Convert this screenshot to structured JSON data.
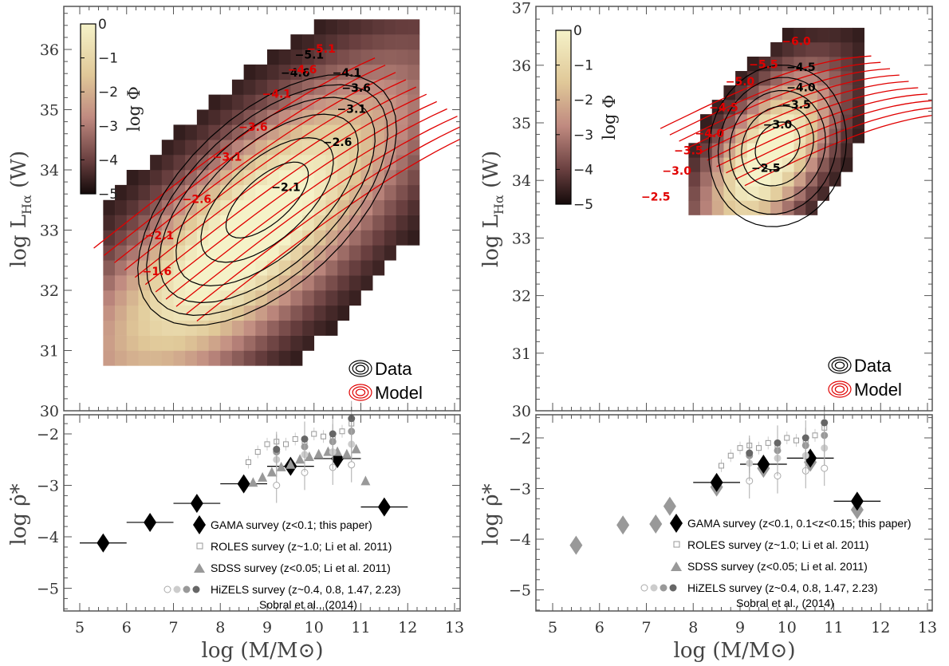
{
  "chart_data": [
    {
      "type": "heatmap",
      "panel": "top-left",
      "ylabel": "log L",
      "ylabel_sub": "Hα",
      "ylabel_unit": "(W)",
      "xlim": [
        4.5,
        13
      ],
      "ylim": [
        30,
        36.5
      ],
      "yticks": [
        "30",
        "31",
        "32",
        "33",
        "34",
        "35",
        "36"
      ],
      "colorbar": {
        "label": "log Φ",
        "ticks": [
          "0",
          "−1",
          "−2",
          "−3",
          "−4",
          "−5"
        ],
        "range": [
          -5,
          0
        ]
      },
      "legend": {
        "data": "Data",
        "model": "Model",
        "position": "bottom-right"
      },
      "data_contour_labels": [
        {
          "text": "−5.1",
          "x": 9.9,
          "y": 35.85
        },
        {
          "text": "−4.6",
          "x": 9.6,
          "y": 35.55
        },
        {
          "text": "−4.1",
          "x": 10.7,
          "y": 35.55
        },
        {
          "text": "−3.6",
          "x": 10.9,
          "y": 35.3
        },
        {
          "text": "−3.1",
          "x": 10.8,
          "y": 34.95
        },
        {
          "text": "−2.6",
          "x": 10.5,
          "y": 34.4
        },
        {
          "text": "−2.1",
          "x": 9.4,
          "y": 33.65
        }
      ],
      "model_contour_labels": [
        {
          "text": "−5.1",
          "x": 10.15,
          "y": 35.95
        },
        {
          "text": "−4.6",
          "x": 9.75,
          "y": 35.6
        },
        {
          "text": "−4.1",
          "x": 9.2,
          "y": 35.2
        },
        {
          "text": "−3.6",
          "x": 8.7,
          "y": 34.65
        },
        {
          "text": "−3.1",
          "x": 8.15,
          "y": 34.15
        },
        {
          "text": "−2.6",
          "x": 7.5,
          "y": 33.45
        },
        {
          "text": "−2.1",
          "x": 6.7,
          "y": 32.85
        },
        {
          "text": "−1.6",
          "x": 6.65,
          "y": 32.25
        }
      ]
    },
    {
      "type": "heatmap",
      "panel": "top-right",
      "ylabel": "log L",
      "ylabel_sub": "Hα",
      "ylabel_unit": "(W)",
      "xlim": [
        4.5,
        13
      ],
      "ylim": [
        30,
        37
      ],
      "yticks": [
        "30",
        "31",
        "32",
        "33",
        "34",
        "35",
        "36",
        "37"
      ],
      "colorbar": {
        "label": "log Φ",
        "ticks": [
          "0",
          "−1",
          "−2",
          "−3",
          "−4",
          "−5"
        ],
        "range": [
          -5,
          0
        ]
      },
      "legend": {
        "data": "Data",
        "model": "Model",
        "position": "bottom-right"
      },
      "data_contour_labels": [
        {
          "text": "−4.5",
          "x": 10.3,
          "y": 35.9
        },
        {
          "text": "−4.0",
          "x": 10.3,
          "y": 35.55
        },
        {
          "text": "−3.5",
          "x": 10.2,
          "y": 35.25
        },
        {
          "text": "−3.0",
          "x": 9.8,
          "y": 34.9
        },
        {
          "text": "−2.5",
          "x": 9.55,
          "y": 34.15
        }
      ],
      "model_contour_labels": [
        {
          "text": "−6.0",
          "x": 10.2,
          "y": 36.35
        },
        {
          "text": "−5.5",
          "x": 9.5,
          "y": 35.95
        },
        {
          "text": "−5.0",
          "x": 9.0,
          "y": 35.65
        },
        {
          "text": "−4.5",
          "x": 8.65,
          "y": 35.2
        },
        {
          "text": "−4.0",
          "x": 8.35,
          "y": 34.75
        },
        {
          "text": "−3.5",
          "x": 7.9,
          "y": 34.45
        },
        {
          "text": "−3.0",
          "x": 7.65,
          "y": 34.1
        },
        {
          "text": "−2.5",
          "x": 7.2,
          "y": 33.65
        }
      ]
    },
    {
      "type": "scatter",
      "panel": "bottom-left",
      "ylabel": "log ρ̇*",
      "xlabel": "log (M/M⊙)",
      "xlim": [
        4.5,
        13
      ],
      "ylim": [
        -5.6,
        -1.6
      ],
      "xticks": [
        "5",
        "6",
        "7",
        "8",
        "9",
        "10",
        "11",
        "12",
        "13"
      ],
      "yticks": [
        "−2",
        "−3",
        "−4",
        "−5"
      ],
      "legend": {
        "gama": "GAMA survey (z<0.1; this paper)",
        "roles": "ROLES survey (z~1.0; Li et al. 2011)",
        "sdss": "SDSS survey (z<0.05; Li et al. 2011)",
        "hizels": "HiZELS survey (z~0.4, 0.8, 1.47, 2.23)",
        "hizels_ref": "Sobral et al., (2014)"
      },
      "series": [
        {
          "name": "GAMA",
          "x": [
            5.5,
            6.5,
            7.5,
            8.5,
            9.5,
            10.5,
            11.5
          ],
          "y": [
            -4.12,
            -3.72,
            -3.35,
            -2.97,
            -2.63,
            -2.48,
            -3.42
          ],
          "xerr": 0.5
        },
        {
          "name": "ROLES",
          "x": [
            8.6,
            8.8,
            9.0,
            9.2,
            9.4,
            9.6,
            9.8,
            10.0,
            10.2,
            10.4,
            10.6,
            10.8
          ],
          "y": [
            -2.55,
            -2.35,
            -2.2,
            -2.15,
            -2.2,
            -2.1,
            -2.15,
            -2.0,
            -2.05,
            -2.1,
            -1.95,
            -1.8
          ]
        },
        {
          "name": "SDSS",
          "x": [
            8.7,
            8.9,
            9.1,
            9.3,
            9.5,
            9.7,
            9.9,
            10.1,
            10.3,
            10.5,
            10.7,
            10.9,
            11.1
          ],
          "y": [
            -2.95,
            -2.85,
            -2.75,
            -2.65,
            -2.6,
            -2.5,
            -2.45,
            -2.4,
            -2.35,
            -2.35,
            -2.4,
            -2.3,
            -2.92
          ]
        },
        {
          "name": "HiZELS z~0.4",
          "x": [
            9.2,
            9.8,
            10.4,
            10.8
          ],
          "y": [
            -3.0,
            -2.75,
            -2.65,
            -2.6
          ]
        },
        {
          "name": "HiZELS z~0.8",
          "x": [
            9.2,
            9.8,
            10.4,
            10.8
          ],
          "y": [
            -2.5,
            -2.4,
            -2.35,
            -2.2
          ]
        },
        {
          "name": "HiZELS z~1.47",
          "x": [
            9.2,
            9.8,
            10.4,
            10.8
          ],
          "y": [
            -2.35,
            -2.25,
            -2.15,
            -1.95
          ]
        },
        {
          "name": "HiZELS z~2.23",
          "x": [
            9.2,
            9.8,
            10.4,
            10.8
          ],
          "y": [
            -2.3,
            -2.1,
            -2.0,
            -1.7
          ]
        }
      ]
    },
    {
      "type": "scatter",
      "panel": "bottom-right",
      "ylabel": "log ρ̇*",
      "xlabel": "log (M/M⊙)",
      "xlim": [
        4.5,
        13
      ],
      "ylim": [
        -5.6,
        -1.6
      ],
      "xticks": [
        "5",
        "6",
        "7",
        "8",
        "9",
        "10",
        "11",
        "12",
        "13"
      ],
      "yticks": [
        "−2",
        "−3",
        "−4",
        "−5"
      ],
      "legend": {
        "gama": "GAMA survey (z<0.1, 0.1<z<0.15; this paper)",
        "roles": "ROLES survey (z~1.0; Li et al. 2011)",
        "sdss": "SDSS survey (z<0.05; Li et al. 2011)",
        "hizels": "HiZELS survey (z~0.4, 0.8, 1.47, 2.23)",
        "hizels_ref": "Sobral et al., (2014)"
      },
      "series": [
        {
          "name": "GAMA z<0.1",
          "x": [
            5.5,
            6.5,
            7.2,
            7.5,
            8.5,
            9.5,
            10.5,
            11.5
          ],
          "y": [
            -4.12,
            -3.72,
            -3.7,
            -3.35,
            -2.97,
            -2.6,
            -2.48,
            -3.42
          ],
          "color": "#999999"
        },
        {
          "name": "GAMA 0.1<z<0.15",
          "x": [
            8.5,
            9.5,
            10.5,
            11.5
          ],
          "y": [
            -2.88,
            -2.52,
            -2.4,
            -3.25
          ],
          "xerr": 0.5
        },
        {
          "name": "ROLES",
          "x": [
            8.6,
            8.8,
            9.0,
            9.2,
            9.4,
            9.6,
            9.8,
            10.0,
            10.2,
            10.4,
            10.6,
            10.8
          ],
          "y": [
            -2.55,
            -2.35,
            -2.2,
            -2.15,
            -2.2,
            -2.1,
            -2.15,
            -2.0,
            -2.05,
            -2.1,
            -1.95,
            -1.8
          ]
        },
        {
          "name": "HiZELS z~0.4",
          "x": [
            9.2,
            9.8,
            10.4,
            10.8
          ],
          "y": [
            -2.85,
            -2.75,
            -2.65,
            -2.6
          ]
        },
        {
          "name": "HiZELS z~0.8",
          "x": [
            9.2,
            9.8,
            10.4,
            10.8
          ],
          "y": [
            -2.5,
            -2.4,
            -2.35,
            -2.2
          ]
        },
        {
          "name": "HiZELS z~1.47",
          "x": [
            9.2,
            9.8,
            10.4,
            10.8
          ],
          "y": [
            -2.35,
            -2.25,
            -2.15,
            -1.95
          ]
        },
        {
          "name": "HiZELS z~2.23",
          "x": [
            9.2,
            9.8,
            10.4,
            10.8
          ],
          "y": [
            -2.3,
            -2.1,
            -2.0,
            -1.7
          ]
        }
      ]
    }
  ]
}
